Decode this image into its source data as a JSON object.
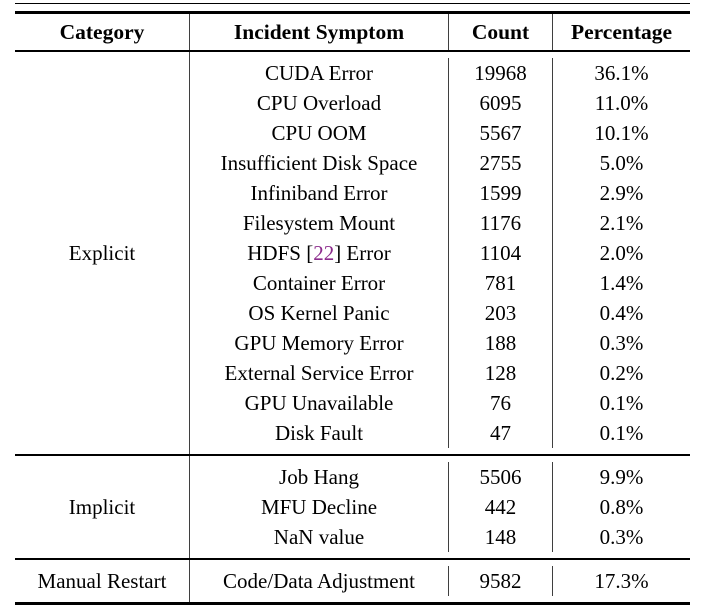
{
  "colors": {
    "text": "#000000",
    "citation": "#8c2b8c",
    "rule": "#000000",
    "column_divider": "#3f3f3f"
  },
  "table": {
    "headers": [
      "Category",
      "Incident Symptom",
      "Count",
      "Percentage"
    ],
    "sections": [
      {
        "category": "Explicit",
        "rows": [
          {
            "symptom": "CUDA Error",
            "count": "19968",
            "percentage": "36.1%"
          },
          {
            "symptom": "CPU Overload",
            "count": "6095",
            "percentage": "11.0%"
          },
          {
            "symptom": "CPU OOM",
            "count": "5567",
            "percentage": "10.1%"
          },
          {
            "symptom": "Insufficient Disk Space",
            "count": "2755",
            "percentage": "5.0%"
          },
          {
            "symptom": "Infiniband Error",
            "count": "1599",
            "percentage": "2.9%"
          },
          {
            "symptom": "Filesystem Mount",
            "count": "1176",
            "percentage": "2.1%"
          },
          {
            "symptom": "HDFS [22] Error",
            "symptom_parts": [
              {
                "text": "HDFS ["
              },
              {
                "text": "22",
                "cite": true
              },
              {
                "text": "] Error"
              }
            ],
            "count": "1104",
            "percentage": "2.0%"
          },
          {
            "symptom": "Container Error",
            "count": "781",
            "percentage": "1.4%"
          },
          {
            "symptom": "OS Kernel Panic",
            "count": "203",
            "percentage": "0.4%"
          },
          {
            "symptom": "GPU Memory Error",
            "count": "188",
            "percentage": "0.3%"
          },
          {
            "symptom": "External Service Error",
            "count": "128",
            "percentage": "0.2%"
          },
          {
            "symptom": "GPU Unavailable",
            "count": "76",
            "percentage": "0.1%"
          },
          {
            "symptom": "Disk Fault",
            "count": "47",
            "percentage": "0.1%"
          }
        ]
      },
      {
        "category": "Implicit",
        "rows": [
          {
            "symptom": "Job Hang",
            "count": "5506",
            "percentage": "9.9%"
          },
          {
            "symptom": "MFU Decline",
            "count": "442",
            "percentage": "0.8%"
          },
          {
            "symptom": "NaN value",
            "count": "148",
            "percentage": "0.3%"
          }
        ]
      },
      {
        "category": "Manual Restart",
        "rows": [
          {
            "symptom": "Code/Data Adjustment",
            "count": "9582",
            "percentage": "17.3%"
          }
        ]
      }
    ]
  }
}
